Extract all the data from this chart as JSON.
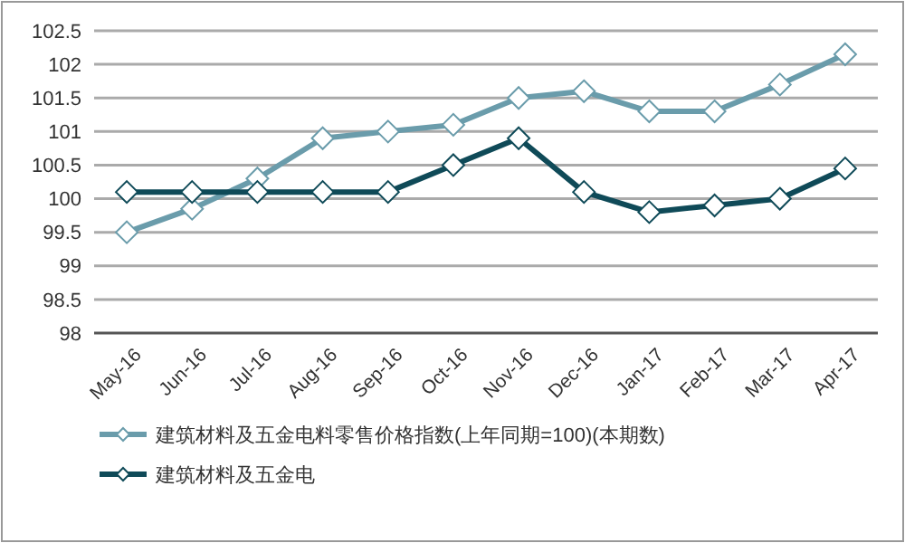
{
  "chart_data": {
    "type": "line",
    "categories": [
      "May-16",
      "Jun-16",
      "Jul-16",
      "Aug-16",
      "Sep-16",
      "Oct-16",
      "Nov-16",
      "Dec-16",
      "Jan-17",
      "Feb-17",
      "Mar-17",
      "Apr-17"
    ],
    "series": [
      {
        "name": "建筑材料及五金电料零售价格指数(上年同期=100)(本期数)",
        "color": "#6a9cab",
        "values": [
          99.5,
          99.85,
          100.3,
          100.9,
          101.0,
          101.1,
          101.5,
          101.6,
          101.3,
          101.3,
          101.7,
          102.15
        ]
      },
      {
        "name": "建筑材料及五金电",
        "color": "#0f4a58",
        "values": [
          100.1,
          100.1,
          100.1,
          100.1,
          100.1,
          100.5,
          100.9,
          100.1,
          99.8,
          99.9,
          100.0,
          100.45
        ]
      }
    ],
    "ylim": [
      98,
      102.5
    ],
    "yticks": [
      98,
      98.5,
      99,
      99.5,
      100,
      100.5,
      101,
      101.5,
      102,
      102.5
    ],
    "grid": "y",
    "legend": "bottom",
    "marker": "diamond",
    "line_style": "solid"
  }
}
